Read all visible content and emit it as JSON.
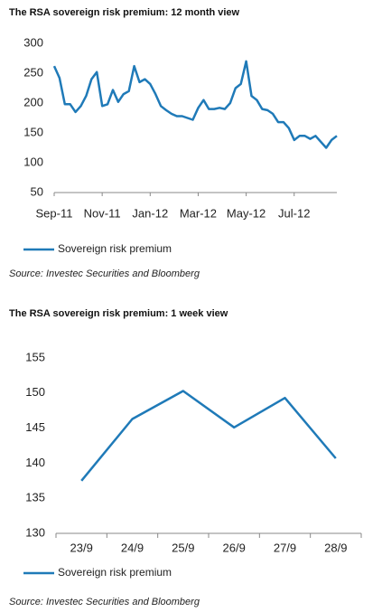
{
  "chart_data": [
    {
      "type": "line",
      "title": "The RSA sovereign risk premium: 12 month view",
      "categories": [
        "Sep-11",
        null,
        null,
        null,
        null,
        null,
        null,
        null,
        null,
        "Nov-11",
        null,
        null,
        null,
        null,
        null,
        null,
        null,
        null,
        "Jan-12",
        null,
        null,
        null,
        null,
        null,
        null,
        null,
        null,
        "Mar-12",
        null,
        null,
        null,
        null,
        null,
        null,
        null,
        null,
        "May-12",
        null,
        null,
        null,
        null,
        null,
        null,
        null,
        null,
        "Jul-12",
        null,
        null,
        null,
        null,
        null,
        null,
        null,
        null
      ],
      "series": [
        {
          "name": "Sovereign risk premium",
          "color": "#1f7ab8",
          "values": [
            262,
            242,
            198,
            198,
            185,
            195,
            212,
            240,
            252,
            195,
            198,
            222,
            202,
            215,
            220,
            262,
            235,
            240,
            232,
            215,
            195,
            188,
            182,
            178,
            178,
            175,
            172,
            192,
            205,
            190,
            190,
            192,
            190,
            200,
            225,
            232,
            270,
            212,
            205,
            190,
            188,
            182,
            168,
            168,
            158,
            138,
            145,
            145,
            140,
            145,
            135,
            125,
            138,
            145
          ]
        }
      ],
      "ylim": [
        50,
        300
      ],
      "yticks": [
        50,
        100,
        150,
        200,
        250,
        300
      ],
      "legend": "bottom-left",
      "source": "Source: Investec Securities and Bloomberg"
    },
    {
      "type": "line",
      "title": "The RSA sovereign risk premium: 1 week view",
      "categories": [
        "23/9",
        "24/9",
        "25/9",
        "26/9",
        "27/9",
        "28/9"
      ],
      "series": [
        {
          "name": "Sovereign risk premium",
          "color": "#1f7ab8",
          "values": [
            137.5,
            146.3,
            150.3,
            145.1,
            149.3,
            140.7
          ]
        }
      ],
      "ylim": [
        130,
        155
      ],
      "yticks": [
        130,
        135,
        140,
        145,
        150,
        155
      ],
      "legend": "bottom-left",
      "source": "Source: Investec Securities and Bloomberg"
    }
  ]
}
